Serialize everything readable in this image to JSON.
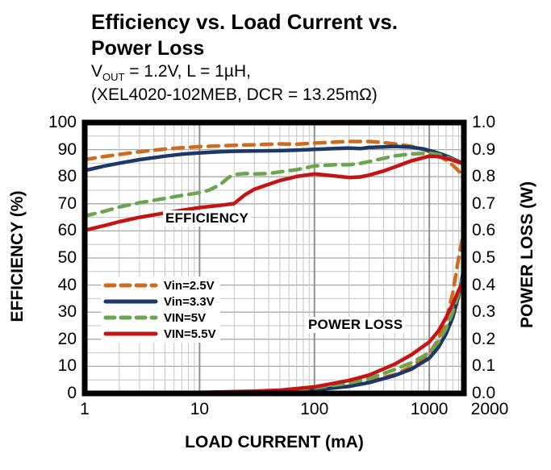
{
  "title": {
    "line1": "Efficiency vs. Load Current vs.",
    "line2": "Power Loss"
  },
  "subtitle": {
    "vout_prefix": "V",
    "vout_sub": "OUT",
    "vout_rest": " = 1.2V, L = 1µH,",
    "line2": "(XEL4020-102MEB, DCR = 13.25mΩ)"
  },
  "chart_data": {
    "type": "line",
    "x_axis": {
      "label": "LOAD CURRENT (mA)",
      "scale": "log",
      "min": 1,
      "max": 2000,
      "ticks": [
        1,
        10,
        100,
        1000,
        2000
      ]
    },
    "y_left": {
      "label": "EFFICIENCY (%)",
      "min": 0,
      "max": 100,
      "ticks": [
        100,
        90,
        80,
        70,
        60,
        50,
        40,
        30,
        20,
        10,
        0
      ]
    },
    "y_right": {
      "label": "POWER LOSS (W)",
      "min": 0.0,
      "max": 1.0,
      "ticks": [
        "1.0",
        "0.9",
        "0.8",
        "0.7",
        "0.6",
        "0.5",
        "0.4",
        "0.3",
        "0.2",
        "0.1",
        "0.0"
      ]
    },
    "grid": true,
    "annotations": [
      {
        "text": "EFFICIENCY"
      },
      {
        "text": "POWER LOSS"
      }
    ],
    "legend": [
      {
        "label": "Vin=2.5V",
        "color": "#cf6b1d",
        "dashed": true
      },
      {
        "label": "Vin=3.3V",
        "color": "#1c3768",
        "dashed": false
      },
      {
        "label": "VIN=5V",
        "color": "#6ba64e",
        "dashed": true
      },
      {
        "label": "VIN=5.5V",
        "color": "#c41414",
        "dashed": false
      }
    ],
    "series": [
      {
        "name": "Vin=2.5V efficiency",
        "axis": "left",
        "color": "#cf6b1d",
        "dashed": true,
        "points": [
          [
            1,
            86.3
          ],
          [
            1.5,
            87.5
          ],
          [
            2,
            88.2
          ],
          [
            3,
            89.2
          ],
          [
            5,
            90.2
          ],
          [
            7,
            90.7
          ],
          [
            10,
            91.1
          ],
          [
            15,
            91.4
          ],
          [
            20,
            91.6
          ],
          [
            30,
            91.8
          ],
          [
            50,
            92.1
          ],
          [
            70,
            92.0
          ],
          [
            100,
            92.4
          ],
          [
            150,
            92.8
          ],
          [
            200,
            93.0
          ],
          [
            300,
            93.0
          ],
          [
            400,
            92.6
          ],
          [
            500,
            92.1
          ],
          [
            700,
            91.2
          ],
          [
            900,
            90.0
          ],
          [
            1100,
            88.6
          ],
          [
            1300,
            87.0
          ],
          [
            1500,
            85.3
          ],
          [
            1700,
            83.2
          ],
          [
            2000,
            80.0
          ]
        ]
      },
      {
        "name": "Vin=3.3V efficiency",
        "axis": "left",
        "color": "#1c3768",
        "dashed": false,
        "points": [
          [
            1,
            82.3
          ],
          [
            1.5,
            84.0
          ],
          [
            2,
            85.0
          ],
          [
            3,
            86.3
          ],
          [
            5,
            87.6
          ],
          [
            7,
            88.3
          ],
          [
            10,
            88.8
          ],
          [
            15,
            89.2
          ],
          [
            20,
            89.4
          ],
          [
            30,
            89.5
          ],
          [
            50,
            89.6
          ],
          [
            70,
            89.8
          ],
          [
            100,
            90.1
          ],
          [
            150,
            90.4
          ],
          [
            200,
            90.6
          ],
          [
            250,
            90.4
          ],
          [
            300,
            90.8
          ],
          [
            400,
            91.0
          ],
          [
            500,
            91.2
          ],
          [
            700,
            90.9
          ],
          [
            900,
            90.2
          ],
          [
            1100,
            89.2
          ],
          [
            1300,
            88.2
          ],
          [
            1500,
            87.2
          ],
          [
            1700,
            86.1
          ],
          [
            2000,
            84.7
          ]
        ]
      },
      {
        "name": "VIN=5V efficiency",
        "axis": "left",
        "color": "#6ba64e",
        "dashed": true,
        "points": [
          [
            1,
            65.5
          ],
          [
            1.5,
            67.3
          ],
          [
            2,
            68.8
          ],
          [
            3,
            70.4
          ],
          [
            5,
            72.0
          ],
          [
            7,
            73.1
          ],
          [
            10,
            74.1
          ],
          [
            12,
            75.0
          ],
          [
            15,
            77.0
          ],
          [
            18,
            79.8
          ],
          [
            20,
            80.8
          ],
          [
            25,
            81.2
          ],
          [
            30,
            81.0
          ],
          [
            40,
            81.2
          ],
          [
            50,
            81.8
          ],
          [
            70,
            82.6
          ],
          [
            100,
            84.0
          ],
          [
            150,
            84.4
          ],
          [
            200,
            84.4
          ],
          [
            250,
            84.9
          ],
          [
            300,
            85.6
          ],
          [
            400,
            86.8
          ],
          [
            500,
            87.7
          ],
          [
            700,
            88.4
          ],
          [
            1000,
            88.7
          ],
          [
            1200,
            88.2
          ],
          [
            1400,
            87.3
          ],
          [
            1600,
            86.3
          ],
          [
            1800,
            85.4
          ],
          [
            2000,
            84.4
          ]
        ]
      },
      {
        "name": "VIN=5.5V efficiency",
        "axis": "left",
        "color": "#c41414",
        "dashed": false,
        "points": [
          [
            1,
            60.2
          ],
          [
            1.5,
            62.0
          ],
          [
            2,
            63.4
          ],
          [
            3,
            65.0
          ],
          [
            5,
            66.6
          ],
          [
            7,
            67.6
          ],
          [
            10,
            68.6
          ],
          [
            15,
            69.4
          ],
          [
            20,
            70.1
          ],
          [
            25,
            73.4
          ],
          [
            30,
            75.4
          ],
          [
            40,
            77.2
          ],
          [
            50,
            78.6
          ],
          [
            70,
            80.1
          ],
          [
            100,
            81.0
          ],
          [
            150,
            80.3
          ],
          [
            200,
            79.7
          ],
          [
            250,
            79.9
          ],
          [
            300,
            80.6
          ],
          [
            400,
            82.1
          ],
          [
            500,
            83.6
          ],
          [
            700,
            85.9
          ],
          [
            1000,
            87.6
          ],
          [
            1200,
            87.4
          ],
          [
            1400,
            86.8
          ],
          [
            1600,
            86.1
          ],
          [
            1800,
            85.4
          ],
          [
            2000,
            84.7
          ]
        ]
      },
      {
        "name": "Vin=2.5V power loss",
        "axis": "right",
        "color": "#cf6b1d",
        "dashed": true,
        "points": [
          [
            1,
            0.001
          ],
          [
            10,
            0.002
          ],
          [
            30,
            0.005
          ],
          [
            50,
            0.008
          ],
          [
            100,
            0.015
          ],
          [
            200,
            0.03
          ],
          [
            300,
            0.045
          ],
          [
            500,
            0.07
          ],
          [
            700,
            0.098
          ],
          [
            1000,
            0.148
          ],
          [
            1200,
            0.2
          ],
          [
            1400,
            0.27
          ],
          [
            1600,
            0.37
          ],
          [
            1800,
            0.5
          ],
          [
            2000,
            0.6
          ]
        ]
      },
      {
        "name": "Vin=3.3V power loss",
        "axis": "right",
        "color": "#1c3768",
        "dashed": false,
        "points": [
          [
            1,
            0.001
          ],
          [
            10,
            0.002
          ],
          [
            30,
            0.004
          ],
          [
            50,
            0.007
          ],
          [
            100,
            0.013
          ],
          [
            200,
            0.026
          ],
          [
            300,
            0.04
          ],
          [
            500,
            0.066
          ],
          [
            700,
            0.09
          ],
          [
            1000,
            0.13
          ],
          [
            1200,
            0.17
          ],
          [
            1400,
            0.22
          ],
          [
            1600,
            0.28
          ],
          [
            1800,
            0.36
          ],
          [
            2000,
            0.46
          ]
        ]
      },
      {
        "name": "VIN=5V power loss",
        "axis": "right",
        "color": "#6ba64e",
        "dashed": true,
        "points": [
          [
            1,
            0.001
          ],
          [
            10,
            0.003
          ],
          [
            30,
            0.007
          ],
          [
            50,
            0.01
          ],
          [
            100,
            0.02
          ],
          [
            200,
            0.038
          ],
          [
            300,
            0.055
          ],
          [
            500,
            0.088
          ],
          [
            700,
            0.113
          ],
          [
            1000,
            0.15
          ],
          [
            1200,
            0.19
          ],
          [
            1400,
            0.24
          ],
          [
            1600,
            0.3
          ],
          [
            1800,
            0.37
          ],
          [
            2000,
            0.44
          ]
        ]
      },
      {
        "name": "VIN=5.5V power loss",
        "axis": "right",
        "color": "#c41414",
        "dashed": false,
        "points": [
          [
            1,
            0.001
          ],
          [
            10,
            0.004
          ],
          [
            30,
            0.008
          ],
          [
            50,
            0.012
          ],
          [
            100,
            0.024
          ],
          [
            200,
            0.048
          ],
          [
            300,
            0.068
          ],
          [
            500,
            0.108
          ],
          [
            700,
            0.143
          ],
          [
            1000,
            0.19
          ],
          [
            1200,
            0.23
          ],
          [
            1400,
            0.28
          ],
          [
            1600,
            0.33
          ],
          [
            1800,
            0.38
          ],
          [
            2000,
            0.42
          ]
        ]
      }
    ]
  }
}
